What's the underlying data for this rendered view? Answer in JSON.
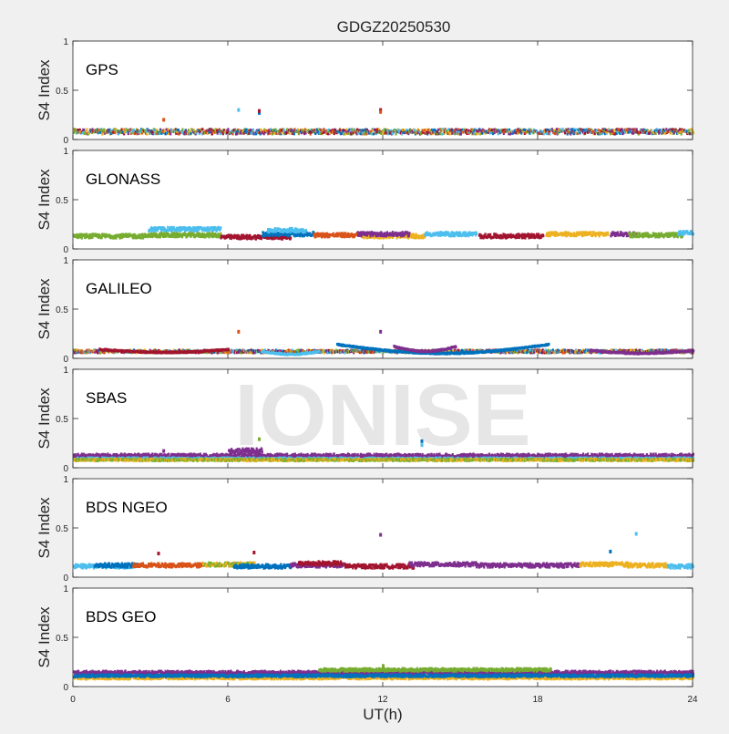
{
  "title": "GDGZ20250530",
  "watermark": "IONISE",
  "xlabel": "UT(h)",
  "ylabel": "S4 Index",
  "x_ticks": [
    0,
    6,
    12,
    18,
    24
  ],
  "y_ticks": [
    "0",
    "0.5",
    "1"
  ],
  "colors": [
    "#0072BD",
    "#D95319",
    "#EDB120",
    "#7E2F8E",
    "#77AC30",
    "#4DBEEE",
    "#A2142F"
  ],
  "chart_data": [
    {
      "type": "scatter",
      "name": "GPS",
      "xlim": [
        0,
        24
      ],
      "ylim": [
        0,
        1
      ],
      "segments": [
        [
          0,
          24,
          0.08,
          0.025,
          [
            0,
            1,
            2,
            3,
            4,
            5,
            6
          ]
        ]
      ],
      "arcs": [],
      "outliers": [
        [
          6.4,
          0.3,
          5
        ],
        [
          7.2,
          0.27,
          0
        ],
        [
          7.2,
          0.29,
          6
        ],
        [
          11.9,
          0.3,
          6
        ],
        [
          11.9,
          0.28,
          1
        ],
        [
          3.5,
          0.2,
          1
        ]
      ]
    },
    {
      "type": "scatter",
      "name": "GLONASS",
      "xlim": [
        0,
        24
      ],
      "ylim": [
        0,
        1
      ],
      "segments": [
        [
          0,
          2.9,
          0.13,
          0.02,
          [
            4
          ]
        ],
        [
          2.9,
          5.7,
          0.2,
          0.02,
          [
            5
          ]
        ],
        [
          2.9,
          5.7,
          0.14,
          0.02,
          [
            4
          ]
        ],
        [
          5.7,
          8.4,
          0.12,
          0.02,
          [
            6
          ]
        ],
        [
          7.3,
          9.3,
          0.15,
          0.02,
          [
            0
          ]
        ],
        [
          7.5,
          9.0,
          0.19,
          0.02,
          [
            5
          ]
        ],
        [
          9.3,
          11.6,
          0.14,
          0.02,
          [
            1
          ]
        ],
        [
          11.2,
          13.6,
          0.13,
          0.02,
          [
            2
          ]
        ],
        [
          11.0,
          13.0,
          0.15,
          0.02,
          [
            3
          ]
        ],
        [
          13.6,
          15.6,
          0.15,
          0.02,
          [
            5
          ]
        ],
        [
          15.7,
          18.2,
          0.13,
          0.02,
          [
            6
          ]
        ],
        [
          18.3,
          20.7,
          0.15,
          0.02,
          [
            2
          ]
        ],
        [
          20.8,
          21.8,
          0.15,
          0.02,
          [
            3
          ]
        ],
        [
          21.5,
          23.6,
          0.14,
          0.02,
          [
            4
          ]
        ],
        [
          23.4,
          24,
          0.16,
          0.02,
          [
            5
          ]
        ]
      ],
      "arcs": [],
      "outliers": []
    },
    {
      "type": "scatter",
      "name": "GALILEO",
      "xlim": [
        0,
        24
      ],
      "ylim": [
        0,
        1
      ],
      "segments": [
        [
          0,
          24,
          0.07,
          0.015,
          [
            0,
            1,
            2,
            3,
            4,
            5,
            6
          ]
        ]
      ],
      "arcs": [
        [
          10.2,
          18.4,
          0.14,
          0.05,
          0
        ],
        [
          12.4,
          14.8,
          0.12,
          0.07,
          3
        ],
        [
          1.0,
          6.0,
          0.09,
          0.06,
          6
        ],
        [
          20.0,
          24.0,
          0.08,
          0.05,
          3
        ],
        [
          7.3,
          9.5,
          0.07,
          0.04,
          5
        ]
      ],
      "outliers": [
        [
          6.4,
          0.27,
          1
        ],
        [
          11.9,
          0.27,
          3
        ]
      ]
    },
    {
      "type": "scatter",
      "name": "SBAS",
      "xlim": [
        0,
        24
      ],
      "ylim": [
        0,
        1
      ],
      "segments": [
        [
          0,
          24,
          0.1,
          0.015,
          [
            0
          ]
        ],
        [
          0,
          24,
          0.12,
          0.02,
          [
            3
          ]
        ],
        [
          0,
          24,
          0.09,
          0.012,
          [
            5
          ]
        ],
        [
          0,
          24,
          0.08,
          0.01,
          [
            2,
            4
          ]
        ],
        [
          6.0,
          7.3,
          0.17,
          0.025,
          [
            3
          ]
        ]
      ],
      "arcs": [],
      "outliers": [
        [
          7.2,
          0.29,
          4
        ],
        [
          13.5,
          0.27,
          0
        ],
        [
          13.5,
          0.23,
          5
        ],
        [
          3.5,
          0.17,
          3
        ]
      ]
    },
    {
      "type": "scatter",
      "name": "BDS NGEO",
      "xlim": [
        0,
        24
      ],
      "ylim": [
        0,
        1
      ],
      "segments": [
        [
          0,
          2.3,
          0.11,
          0.02,
          [
            5
          ]
        ],
        [
          0.8,
          2.5,
          0.12,
          0.02,
          [
            0
          ]
        ],
        [
          2.3,
          5.0,
          0.12,
          0.02,
          [
            1
          ]
        ],
        [
          5.0,
          7.0,
          0.13,
          0.02,
          [
            2,
            4
          ]
        ],
        [
          6.2,
          8.4,
          0.11,
          0.02,
          [
            0
          ]
        ],
        [
          8.4,
          10.5,
          0.12,
          0.02,
          [
            3
          ]
        ],
        [
          8.7,
          10.4,
          0.14,
          0.02,
          [
            6
          ]
        ],
        [
          10.5,
          13.2,
          0.11,
          0.02,
          [
            6
          ]
        ],
        [
          13.0,
          15.6,
          0.13,
          0.02,
          [
            3
          ]
        ],
        [
          15.6,
          19.6,
          0.12,
          0.02,
          [
            3
          ]
        ],
        [
          19.6,
          21.6,
          0.13,
          0.02,
          [
            2
          ]
        ],
        [
          21.3,
          23.1,
          0.12,
          0.02,
          [
            2
          ]
        ],
        [
          23.0,
          24,
          0.11,
          0.02,
          [
            5
          ]
        ]
      ],
      "arcs": [],
      "outliers": [
        [
          11.9,
          0.43,
          3
        ],
        [
          21.8,
          0.44,
          5
        ],
        [
          7.0,
          0.25,
          6
        ],
        [
          3.3,
          0.24,
          6
        ],
        [
          20.8,
          0.26,
          0
        ]
      ]
    },
    {
      "type": "scatter",
      "name": "BDS GEO",
      "xlim": [
        0,
        24
      ],
      "ylim": [
        0,
        1
      ],
      "segments": [
        [
          0,
          24,
          0.14,
          0.018,
          [
            3
          ]
        ],
        [
          0,
          24,
          0.09,
          0.015,
          [
            2
          ]
        ],
        [
          0,
          24,
          0.11,
          0.012,
          [
            0
          ]
        ],
        [
          9.5,
          18.5,
          0.17,
          0.015,
          [
            4
          ]
        ]
      ],
      "arcs": [],
      "outliers": [
        [
          12.0,
          0.21,
          4
        ]
      ]
    }
  ]
}
